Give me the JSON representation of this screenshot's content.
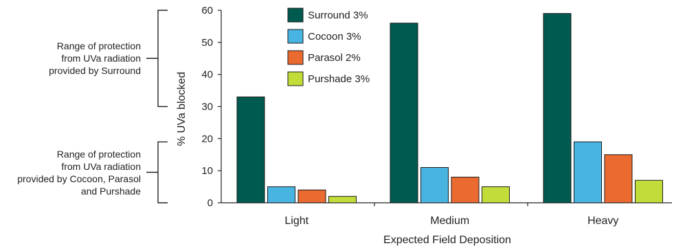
{
  "chart_data": {
    "type": "bar",
    "title": "",
    "xlabel": "Expected Field Deposition",
    "ylabel": "% UVa blocked",
    "ylim": [
      0,
      60
    ],
    "yticks": [
      0,
      10,
      20,
      30,
      40,
      50,
      60
    ],
    "grid": false,
    "legend_position": "top-center",
    "categories": [
      "Light",
      "Medium",
      "Heavy"
    ],
    "series": [
      {
        "name": "Surround 3%",
        "color": "#005a50",
        "values": [
          33,
          56,
          59
        ]
      },
      {
        "name": "Cocoon 3%",
        "color": "#48b4e2",
        "values": [
          5,
          11,
          19
        ]
      },
      {
        "name": "Parasol 2%",
        "color": "#ea6a30",
        "values": [
          4,
          8,
          15
        ]
      },
      {
        "name": "Purshade 3%",
        "color": "#c2dd3a",
        "values": [
          2,
          5,
          7
        ]
      }
    ],
    "annotations": [
      {
        "lines": [
          "Range of protection",
          "from UVa radiation",
          "provided by Surround"
        ],
        "range": [
          30,
          60
        ]
      },
      {
        "lines": [
          "Range of protection",
          "from UVa radiation",
          "provided by Cocoon, Parasol",
          "and Purshade"
        ],
        "range": [
          0,
          19
        ]
      }
    ]
  }
}
